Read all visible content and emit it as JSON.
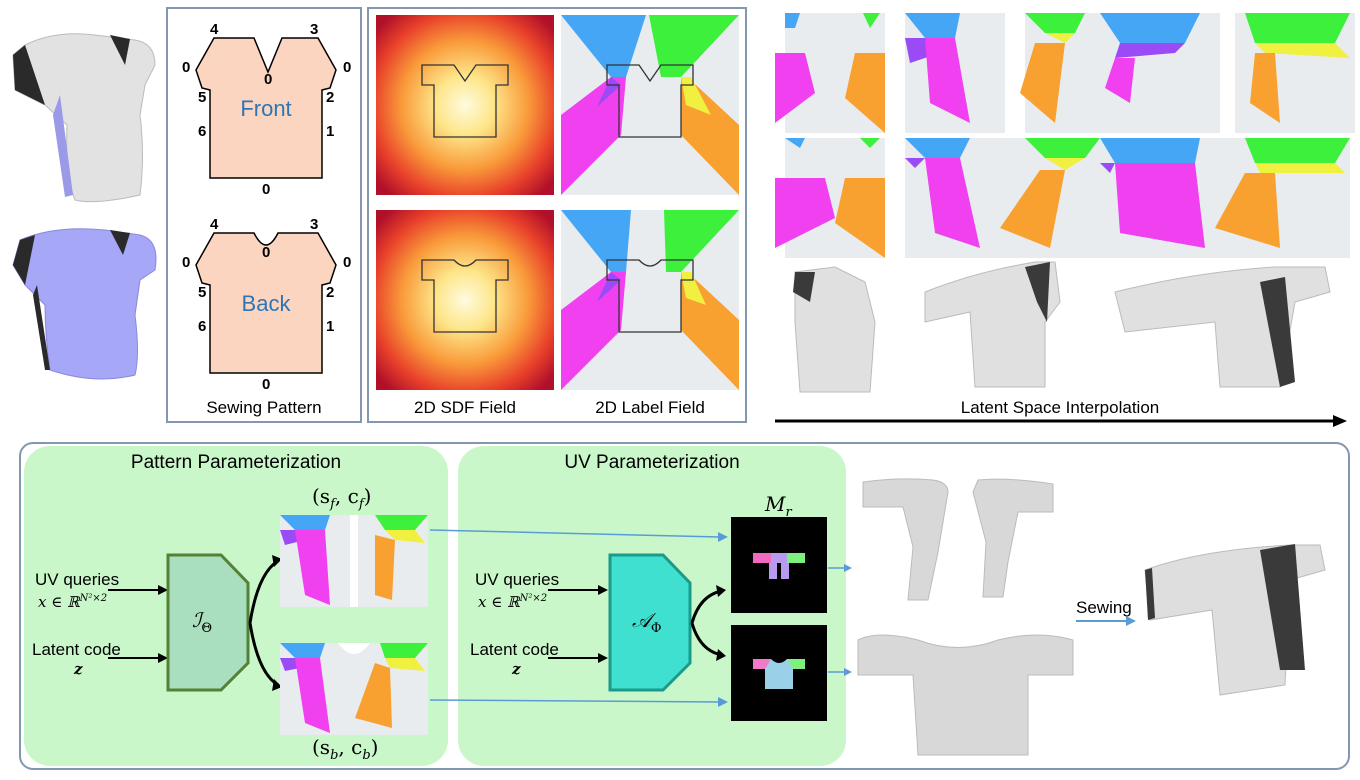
{
  "sewing_pattern": {
    "caption": "Sewing Pattern",
    "front_label": "Front",
    "back_label": "Back",
    "edge_numbers": [
      "4",
      "3",
      "0",
      "0",
      "0",
      "5",
      "2",
      "6",
      "1",
      "0"
    ]
  },
  "fields": {
    "sdf_caption": "2D SDF Field",
    "label_caption": "2D Label Field"
  },
  "interpolation": {
    "caption": "Latent Space Interpolation"
  },
  "pipeline": {
    "pattern_title": "Pattern Parameterization",
    "uv_title": "UV Parameterization",
    "uv_queries": "UV queries",
    "uv_queries_math": "x ∈ ℝ",
    "uv_queries_sup": "N²×2",
    "latent_code": "Latent code",
    "latent_math": "z",
    "pattern_net": "ℐ",
    "pattern_net_sub": "Θ",
    "uv_net": "𝒜",
    "uv_net_sub": "Φ",
    "front_output": "(s_f, c_f)",
    "front_s": "(s",
    "front_s_sub": "f",
    "front_c": ", c",
    "front_c_sub": "f",
    "back_s": "(s",
    "back_s_sub": "b",
    "back_c": ", c",
    "back_c_sub": "b",
    "mr_label": "M",
    "mr_sub": "r",
    "sewing_label": "Sewing"
  },
  "colors": {
    "panel_border": "#8497b0",
    "green_panel": "#c9f7c9",
    "pattern_fill": "#fbd5bf",
    "pattern_text": "#2e75b6",
    "net_pattern": "#a9dfbf",
    "net_pattern_border": "#548235",
    "net_uv": "#40e0d0",
    "net_uv_border": "#1a9a8a",
    "arrow_blue": "#5b9bd5",
    "label_blue": "#45a6f5",
    "label_green": "#3cf03c",
    "label_magenta": "#f040f0",
    "label_orange": "#f8a030",
    "label_violet": "#9a4bf5",
    "label_yellow": "#f0f040",
    "label_bg": "#e8ecef",
    "garment_white": "#e0e0e0",
    "garment_purple": "#a7a7f7"
  }
}
